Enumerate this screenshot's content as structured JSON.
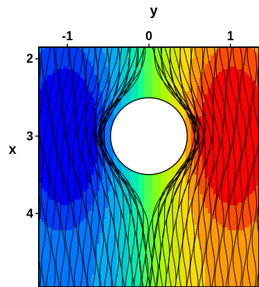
{
  "chart_data": {
    "type": "heatmap",
    "title": "",
    "top_axis_label": "y",
    "left_axis_label": "x",
    "top_ticks": [
      {
        "value": -1,
        "label": "-1"
      },
      {
        "value": 0,
        "label": "0"
      },
      {
        "value": 1,
        "label": "1"
      }
    ],
    "left_ticks": [
      {
        "value": 2,
        "label": "2"
      },
      {
        "value": 3,
        "label": "3"
      },
      {
        "value": 4,
        "label": "4"
      }
    ],
    "y_range": [
      -1.35,
      1.35
    ],
    "x_range": [
      1.85,
      4.95
    ],
    "x_axis_reversed": true,
    "colormap": [
      "#0000ff",
      "#00a8ff",
      "#00ffa0",
      "#9cff00",
      "#ffd800",
      "#ff0000"
    ],
    "field_description_values": {
      "min_at": {
        "y": -1.0,
        "x": 3.0
      },
      "max_at": {
        "y": 1.0,
        "x": 3.0
      }
    },
    "obstacle": {
      "shape": "circle",
      "center_y": 0.0,
      "center_x": 3.0,
      "radius": 0.47
    },
    "streamline_color": "#000000",
    "legend": "none",
    "grid": false
  }
}
